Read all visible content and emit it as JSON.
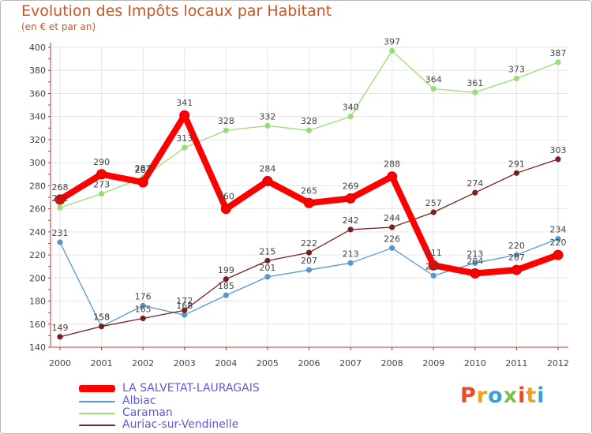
{
  "title": "Evolution des Impôts locaux par Habitant",
  "subtitle": "(en € et par an)",
  "logo": {
    "text": "Proxiti",
    "letters": [
      "P",
      "r",
      "o",
      "x",
      "i",
      "t",
      "i"
    ],
    "colors": [
      "#e84d26",
      "#f0a020",
      "#3aa0d8",
      "#7cc242",
      "#e84d26",
      "#f0a020",
      "#3aa0d8"
    ]
  },
  "chart_data": {
    "type": "line",
    "title": "Evolution des Impôts locaux par Habitant",
    "subtitle": "(en € et par an)",
    "xlabel": "",
    "ylabel": "",
    "x": [
      "2000",
      "2001",
      "2002",
      "2003",
      "2004",
      "2005",
      "2006",
      "2007",
      "2008",
      "2009",
      "2010",
      "2011",
      "2012"
    ],
    "ylim": [
      140,
      400
    ],
    "yticks": [
      "140",
      "160",
      "180",
      "200",
      "220",
      "240",
      "260",
      "280",
      "300",
      "320",
      "340",
      "360",
      "380",
      "400"
    ],
    "grid": true,
    "legend_position": "bottom-left",
    "series": [
      {
        "name": "LA SALVETAT-LAURAGAIS",
        "color": "#ff0000",
        "values": [
          268,
          290,
          283,
          341,
          260,
          284,
          265,
          269,
          288,
          211,
          204,
          207,
          220
        ],
        "labels": [
          "268",
          "290",
          "283",
          "341",
          "260",
          "284",
          "265",
          "269",
          "288",
          "211",
          "204",
          "207",
          "220"
        ],
        "bold": true
      },
      {
        "name": "Albiac",
        "color": "#5599cc",
        "values": [
          231,
          158,
          176,
          168,
          185,
          201,
          207,
          213,
          226,
          202,
          213,
          220,
          234
        ],
        "labels": [
          "231",
          "158",
          "176",
          "168",
          "185",
          "201",
          "207",
          "213",
          "226",
          "202",
          "213",
          "220",
          "234"
        ],
        "bold": false
      },
      {
        "name": "Caraman",
        "color": "#99dd77",
        "values": [
          261,
          273,
          287,
          313,
          328,
          332,
          328,
          340,
          397,
          364,
          361,
          373,
          387
        ],
        "labels": [
          "261",
          "273",
          "287",
          "313",
          "328",
          "332",
          "328",
          "340",
          "397",
          "364",
          "361",
          "373",
          "387"
        ],
        "bold": false
      },
      {
        "name": "Auriac-sur-Vendinelle",
        "color": "#772222",
        "values": [
          149,
          158,
          165,
          172,
          199,
          215,
          222,
          242,
          244,
          257,
          274,
          291,
          303
        ],
        "labels": [
          "149",
          "158",
          "165",
          "172",
          "199",
          "215",
          "222",
          "242",
          "244",
          "257",
          "274",
          "291",
          "303"
        ],
        "bold": false
      }
    ]
  }
}
